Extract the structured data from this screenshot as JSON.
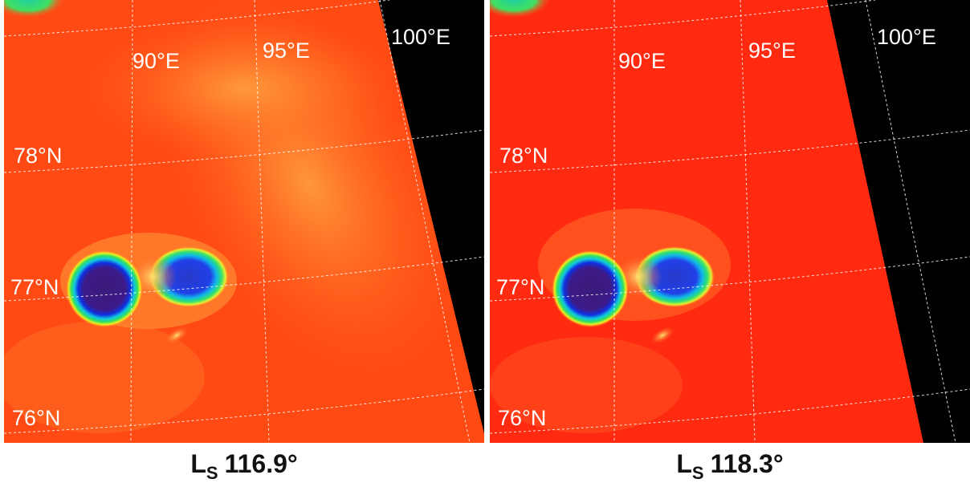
{
  "panels": [
    {
      "longitude_labels": [
        "90°E",
        "95°E",
        "100°E"
      ],
      "latitude_labels": [
        "78°N",
        "77°N",
        "76°N"
      ],
      "caption": {
        "main": "L",
        "subscript": "S",
        "value": "116.9°"
      }
    },
    {
      "longitude_labels": [
        "90°E",
        "95°E",
        "100°E"
      ],
      "latitude_labels": [
        "78°N",
        "77°N",
        "76°N"
      ],
      "caption": {
        "main": "L",
        "subscript": "S",
        "value": "118.3°"
      }
    }
  ]
}
